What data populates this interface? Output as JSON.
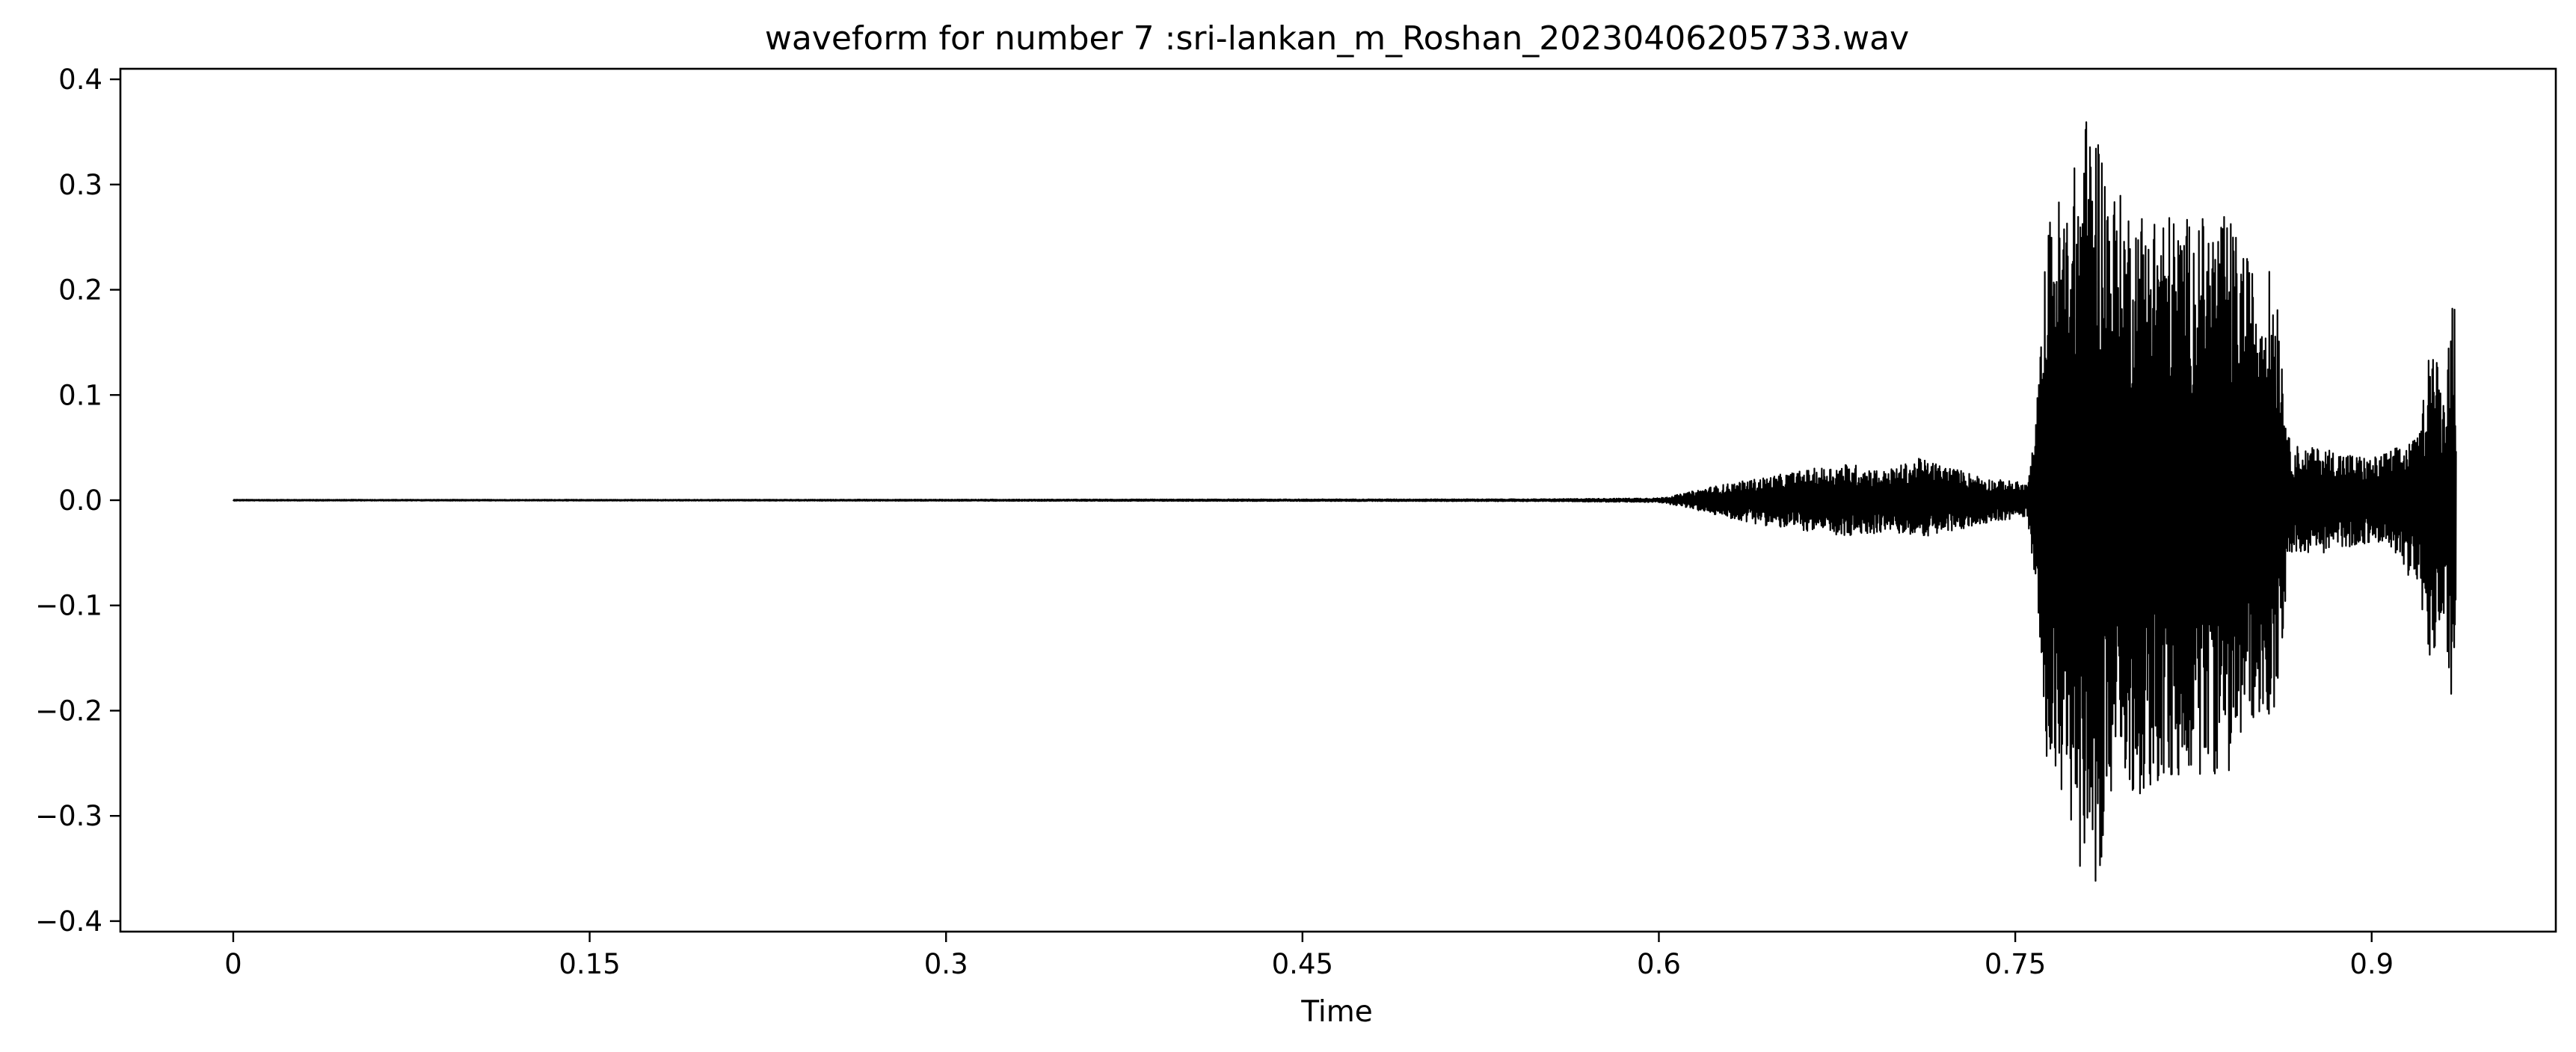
{
  "chart_data": {
    "type": "line",
    "title": "waveform for number 7 :sri-lankan_m_Roshan_20230406205733.wav",
    "xlabel": "Time",
    "ylabel": "",
    "xlim": [
      -0.0475,
      0.9775
    ],
    "ylim": [
      -0.41,
      0.41
    ],
    "x_ticks": [
      0,
      0.15,
      0.3,
      0.45,
      0.6,
      0.75,
      0.9
    ],
    "x_tick_labels": [
      "0",
      "0.15",
      "0.3",
      "0.45",
      "0.6",
      "0.75",
      "0.9"
    ],
    "y_ticks": [
      0.4,
      0.3,
      0.2,
      0.1,
      0.0,
      -0.1,
      -0.2,
      -0.3,
      -0.4
    ],
    "y_tick_labels": [
      "0.4",
      "0.3",
      "0.2",
      "0.1",
      "0.0",
      "−0.1",
      "−0.2",
      "−0.3",
      "−0.4"
    ],
    "grid": false,
    "legend": "none",
    "line_color": "#000000",
    "series": [
      {
        "x": [
          0,
          0.2,
          0.4,
          0.55,
          0.6,
          0.61,
          0.62,
          0.635,
          0.65,
          0.665,
          0.68,
          0.695,
          0.71,
          0.725,
          0.74,
          0.75,
          0.755,
          0.758,
          0.76,
          0.763,
          0.767,
          0.77,
          0.775,
          0.78,
          0.785,
          0.79,
          0.8,
          0.81,
          0.82,
          0.83,
          0.84,
          0.85,
          0.86,
          0.865,
          0.87,
          0.88,
          0.89,
          0.9,
          0.91,
          0.92,
          0.925,
          0.93,
          0.935,
          0.9355
        ],
        "y_max": [
          0.0005,
          0.0005,
          0.0008,
          0.001,
          0.002,
          0.006,
          0.012,
          0.018,
          0.024,
          0.03,
          0.035,
          0.028,
          0.04,
          0.03,
          0.02,
          0.018,
          0.015,
          0.06,
          0.12,
          0.25,
          0.3,
          0.28,
          0.32,
          0.37,
          0.36,
          0.3,
          0.28,
          0.28,
          0.27,
          0.27,
          0.27,
          0.22,
          0.22,
          0.06,
          0.05,
          0.05,
          0.045,
          0.04,
          0.05,
          0.06,
          0.17,
          0.1,
          0.23,
          0.05
        ],
        "y_min": [
          -0.0005,
          -0.0005,
          -0.0008,
          -0.001,
          -0.002,
          -0.006,
          -0.012,
          -0.02,
          -0.026,
          -0.03,
          -0.036,
          -0.03,
          -0.035,
          -0.03,
          -0.02,
          -0.018,
          -0.015,
          -0.07,
          -0.12,
          -0.24,
          -0.3,
          -0.28,
          -0.33,
          -0.37,
          -0.36,
          -0.29,
          -0.28,
          -0.28,
          -0.27,
          -0.26,
          -0.26,
          -0.21,
          -0.2,
          -0.06,
          -0.05,
          -0.05,
          -0.045,
          -0.04,
          -0.05,
          -0.09,
          -0.17,
          -0.1,
          -0.23,
          -0.05
        ]
      }
    ]
  }
}
